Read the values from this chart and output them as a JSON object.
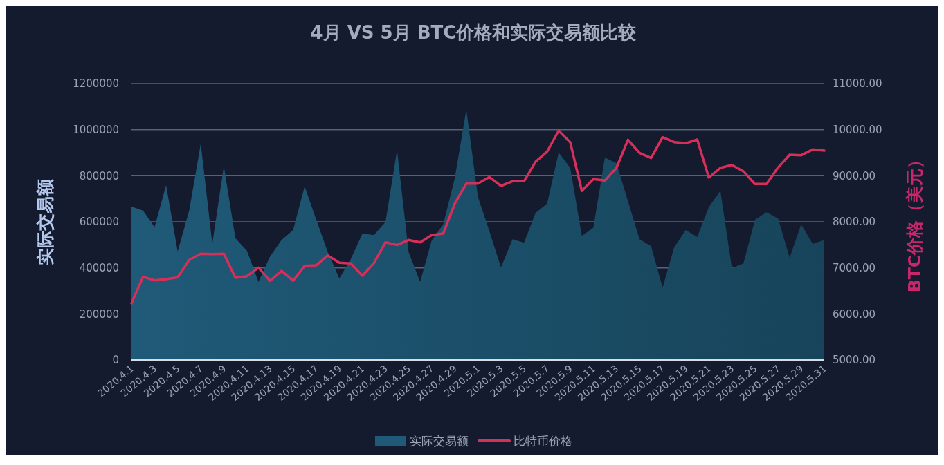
{
  "chart_data": {
    "type": "area",
    "title": "4月 VS 5月 BTC价格和实际交易额比较",
    "ylabel": "实际交易额",
    "y2label": "BTC价格（美元）",
    "categories": [
      "2020.4.1",
      null,
      "2020.4.3",
      null,
      "2020.4.5",
      null,
      "2020.4.7",
      null,
      "2020.4.9",
      null,
      "2020.4.11",
      null,
      "2020.4.13",
      null,
      "2020.4.15",
      null,
      "2020.4.17",
      null,
      "2020.4.19",
      null,
      "2020.4.21",
      null,
      "2020.4.23",
      null,
      "2020.4.25",
      null,
      "2020.4.27",
      null,
      "2020.4.29",
      null,
      "2020.5.1",
      null,
      "2020.5.3",
      null,
      "2020.5.5",
      null,
      "2020.5.7",
      null,
      "2020.5.9",
      null,
      "2020.5.11",
      null,
      "2020.5.13",
      null,
      "2020.5.15",
      null,
      "2020.5.17",
      null,
      "2020.5.19",
      null,
      "2020.5.21",
      null,
      "2020.5.23",
      null,
      "2020.5.25",
      null,
      "2020.5.27",
      null,
      "2020.5.29",
      null,
      "2020.5.31"
    ],
    "series": [
      {
        "name": "实际交易额",
        "color": "#1f5a78",
        "values": [
          666000,
          649000,
          577000,
          759000,
          471000,
          649000,
          939000,
          504000,
          841000,
          529000,
          474000,
          339000,
          449000,
          521000,
          564000,
          754000,
          609000,
          469000,
          354000,
          439000,
          549000,
          542000,
          599000,
          911000,
          469000,
          339000,
          519000,
          589000,
          789000,
          1087000,
          709000,
          559000,
          401000,
          524000,
          509000,
          639000,
          679000,
          901000,
          834000,
          539000,
          574000,
          879000,
          854000,
          689000,
          524000,
          494000,
          314000,
          489000,
          564000,
          534000,
          664000,
          734000,
          399000,
          419000,
          609000,
          641000,
          614000,
          444000,
          589000,
          504000,
          521000
        ]
      },
      {
        "name": "比特币价格",
        "type": "line",
        "axis": "y2",
        "color": "#d6305a",
        "values": [
          6230,
          6805,
          6730,
          6755,
          6795,
          7170,
          7305,
          7300,
          7305,
          6785,
          6820,
          7005,
          6720,
          6935,
          6720,
          7045,
          7055,
          7270,
          7110,
          7095,
          6830,
          7105,
          7555,
          7495,
          7605,
          7555,
          7710,
          7745,
          8395,
          8830,
          8830,
          8970,
          8780,
          8880,
          8880,
          9305,
          9525,
          9980,
          9725,
          8670,
          8925,
          8895,
          9170,
          9780,
          9495,
          9385,
          9835,
          9730,
          9705,
          9785,
          8960,
          9170,
          9235,
          9095,
          8820,
          8820,
          9180,
          9455,
          9445,
          9570,
          9545
        ]
      }
    ],
    "ylim": [
      0,
      1200000
    ],
    "yticks": [
      0,
      200000,
      400000,
      600000,
      800000,
      1000000,
      1200000
    ],
    "y2lim": [
      5000,
      11000
    ],
    "y2ticks": [
      {
        "value": 5000,
        "label": "5000.00"
      },
      {
        "value": 6000,
        "label": "6000.00"
      },
      {
        "value": 7000,
        "label": "7000.00"
      },
      {
        "value": 8000,
        "label": "8000.00"
      },
      {
        "value": 9000,
        "label": "9000.00"
      },
      {
        "value": 10000,
        "label": "10000.00"
      },
      {
        "value": 11000,
        "label": "11000.00"
      }
    ],
    "grid": "y",
    "legend": "bottom",
    "marker": "none",
    "line_style": "solid"
  }
}
